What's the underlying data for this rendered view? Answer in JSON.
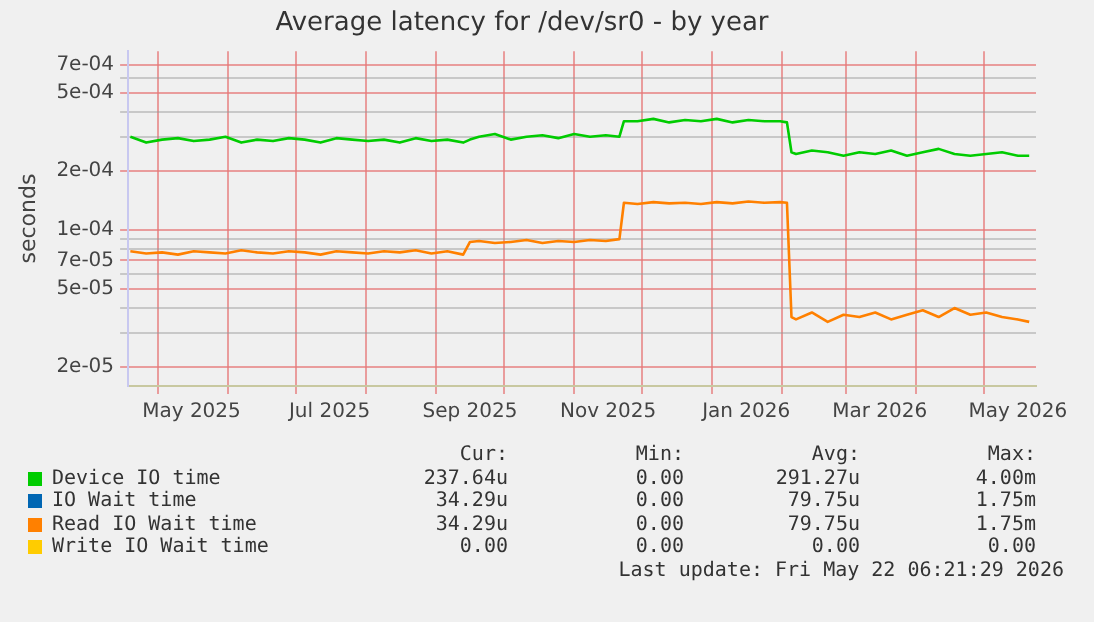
{
  "chart_data": {
    "type": "line",
    "title": "Average latency for /dev/sr0 - by year",
    "ylabel": "seconds",
    "log": "y",
    "grid": true,
    "legend": "bottom",
    "marker": "none",
    "line_style": "solid",
    "x": [
      "2025-04-19",
      "2025-04-26",
      "2025-05-03",
      "2025-05-10",
      "2025-05-17",
      "2025-05-24",
      "2025-05-31",
      "2025-06-07",
      "2025-06-14",
      "2025-06-21",
      "2025-06-28",
      "2025-07-05",
      "2025-07-12",
      "2025-07-19",
      "2025-07-26",
      "2025-08-02",
      "2025-08-09",
      "2025-08-16",
      "2025-08-23",
      "2025-08-30",
      "2025-09-06",
      "2025-09-13",
      "2025-09-16",
      "2025-09-20",
      "2025-09-27",
      "2025-10-04",
      "2025-10-11",
      "2025-10-18",
      "2025-10-25",
      "2025-11-01",
      "2025-11-08",
      "2025-11-15",
      "2025-11-21",
      "2025-11-23",
      "2025-11-29",
      "2025-12-06",
      "2025-12-13",
      "2025-12-20",
      "2025-12-27",
      "2026-01-03",
      "2026-01-10",
      "2026-01-17",
      "2026-01-24",
      "2026-01-31",
      "2026-02-03",
      "2026-02-05",
      "2026-02-07",
      "2026-02-14",
      "2026-02-21",
      "2026-02-28",
      "2026-03-07",
      "2026-03-14",
      "2026-03-21",
      "2026-03-28",
      "2026-04-04",
      "2026-04-11",
      "2026-04-18",
      "2026-04-25",
      "2026-05-02",
      "2026-05-09",
      "2026-05-16",
      "2026-05-21"
    ],
    "xlim": [
      "2025-04-18",
      "2026-05-24"
    ],
    "xticks": [
      {
        "value": "2025-05-01",
        "label": null
      },
      {
        "value": "2025-05-16",
        "label": "May 2025"
      },
      {
        "value": "2025-06-01",
        "label": null
      },
      {
        "value": "2025-07-01",
        "label": null
      },
      {
        "value": "2025-07-16",
        "label": "Jul 2025"
      },
      {
        "value": "2025-08-01",
        "label": null
      },
      {
        "value": "2025-09-01",
        "label": null
      },
      {
        "value": "2025-09-16",
        "label": "Sep 2025"
      },
      {
        "value": "2025-10-01",
        "label": null
      },
      {
        "value": "2025-11-01",
        "label": null
      },
      {
        "value": "2025-11-16",
        "label": "Nov 2025"
      },
      {
        "value": "2025-12-01",
        "label": null
      },
      {
        "value": "2026-01-01",
        "label": null
      },
      {
        "value": "2026-01-16",
        "label": "Jan 2026"
      },
      {
        "value": "2026-02-01",
        "label": null
      },
      {
        "value": "2026-03-01",
        "label": null
      },
      {
        "value": "2026-03-16",
        "label": "Mar 2026"
      },
      {
        "value": "2026-04-01",
        "label": null
      },
      {
        "value": "2026-05-01",
        "label": null
      },
      {
        "value": "2026-05-16",
        "label": "May 2026"
      }
    ],
    "ylim": [
      1.6e-05,
      0.00082
    ],
    "yticks": [
      {
        "value": 2e-05,
        "label": "2e-05"
      },
      {
        "value": 3e-05,
        "label": null
      },
      {
        "value": 4e-05,
        "label": null
      },
      {
        "value": 5e-05,
        "label": "5e-05"
      },
      {
        "value": 6e-05,
        "label": null
      },
      {
        "value": 7e-05,
        "label": "7e-05"
      },
      {
        "value": 8e-05,
        "label": null
      },
      {
        "value": 9e-05,
        "label": null
      },
      {
        "value": 0.0001,
        "label": "1e-04"
      },
      {
        "value": 0.0002,
        "label": "2e-04"
      },
      {
        "value": 0.0003,
        "label": null
      },
      {
        "value": 0.0004,
        "label": null
      },
      {
        "value": 0.0005,
        "label": "5e-04"
      },
      {
        "value": 0.0006,
        "label": null
      },
      {
        "value": 0.0007,
        "label": "7e-04"
      }
    ],
    "series": [
      {
        "name": "Device IO time",
        "color": "#00cc00",
        "values": [
          0.0003,
          0.00028,
          0.00029,
          0.000295,
          0.000285,
          0.00029,
          0.0003,
          0.00028,
          0.00029,
          0.000285,
          0.000295,
          0.00029,
          0.00028,
          0.000295,
          0.00029,
          0.000285,
          0.00029,
          0.00028,
          0.000295,
          0.000285,
          0.00029,
          0.00028,
          0.00029,
          0.0003,
          0.00031,
          0.00029,
          0.0003,
          0.000305,
          0.000295,
          0.00031,
          0.0003,
          0.000305,
          0.0003,
          0.00036,
          0.00036,
          0.00037,
          0.000355,
          0.000365,
          0.00036,
          0.00037,
          0.000355,
          0.000365,
          0.00036,
          0.00036,
          0.000355,
          0.00025,
          0.000245,
          0.000255,
          0.00025,
          0.00024,
          0.00025,
          0.000245,
          0.000255,
          0.00024,
          0.00025,
          0.00026,
          0.000245,
          0.00024,
          0.000245,
          0.00025,
          0.00024,
          0.00024
        ]
      },
      {
        "name": "IO Wait time",
        "color": "#0066b3",
        "values": [
          null,
          null,
          null,
          null,
          null,
          null,
          null,
          null,
          null,
          null,
          null,
          null,
          null,
          null,
          null,
          null,
          null,
          null,
          null,
          null,
          null,
          null,
          null,
          null,
          null,
          null,
          null,
          null,
          null,
          null,
          null,
          null,
          null,
          null,
          null,
          null,
          null,
          null,
          null,
          null,
          null,
          null,
          null,
          null,
          null,
          null,
          null,
          null,
          null,
          null,
          null,
          null,
          null,
          null,
          null,
          null,
          null,
          null,
          null,
          null,
          null,
          null
        ]
      },
      {
        "name": "Read IO Wait time",
        "color": "#ff8000",
        "values": [
          7.8e-05,
          7.6e-05,
          7.7e-05,
          7.5e-05,
          7.8e-05,
          7.7e-05,
          7.6e-05,
          7.9e-05,
          7.7e-05,
          7.6e-05,
          7.8e-05,
          7.7e-05,
          7.5e-05,
          7.8e-05,
          7.7e-05,
          7.6e-05,
          7.8e-05,
          7.7e-05,
          7.9e-05,
          7.6e-05,
          7.8e-05,
          7.5e-05,
          8.7e-05,
          8.8e-05,
          8.6e-05,
          8.7e-05,
          8.9e-05,
          8.6e-05,
          8.8e-05,
          8.7e-05,
          8.9e-05,
          8.8e-05,
          9e-05,
          0.000138,
          0.000136,
          0.000139,
          0.000137,
          0.000138,
          0.000136,
          0.000139,
          0.000137,
          0.00014,
          0.000138,
          0.000139,
          0.000138,
          3.6e-05,
          3.5e-05,
          3.8e-05,
          3.4e-05,
          3.7e-05,
          3.6e-05,
          3.8e-05,
          3.5e-05,
          3.7e-05,
          3.9e-05,
          3.6e-05,
          4e-05,
          3.7e-05,
          3.8e-05,
          3.6e-05,
          3.5e-05,
          3.4e-05
        ]
      },
      {
        "name": "Write IO Wait time",
        "color": "#ffcc00",
        "values": [
          null,
          null,
          null,
          null,
          null,
          null,
          null,
          null,
          null,
          null,
          null,
          null,
          null,
          null,
          null,
          null,
          null,
          null,
          null,
          null,
          null,
          null,
          null,
          null,
          null,
          null,
          null,
          null,
          null,
          null,
          null,
          null,
          null,
          null,
          null,
          null,
          null,
          null,
          null,
          null,
          null,
          null,
          null,
          null,
          null,
          null,
          null,
          null,
          null,
          null,
          null,
          null,
          null,
          null,
          null,
          null,
          null,
          null,
          null,
          null,
          null,
          null
        ]
      }
    ],
    "annotations": [
      "Cur:",
      "Min:",
      "Avg:",
      "Max:",
      "237.64u",
      "0.00",
      "291.27u",
      "4.00m",
      "34.29u",
      "0.00",
      "79.75u",
      "1.75m",
      "34.29u",
      "0.00",
      "79.75u",
      "1.75m",
      "0.00",
      "0.00",
      "0.00",
      "0.00",
      "Last update: Fri May 22 06:21:29 2026"
    ]
  }
}
